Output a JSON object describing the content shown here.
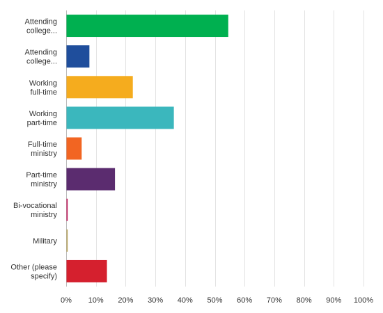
{
  "chart_data": {
    "type": "bar",
    "orientation": "horizontal",
    "categories": [
      [
        "Attending",
        "college..."
      ],
      [
        "Attending",
        "college..."
      ],
      [
        "Working",
        "full-time"
      ],
      [
        "Working",
        "part-time"
      ],
      [
        "Full-time",
        "ministry"
      ],
      [
        "Part-time",
        "ministry"
      ],
      [
        "Bi-vocational",
        "ministry"
      ],
      [
        "Military"
      ],
      [
        "Other (please",
        "specify)"
      ]
    ],
    "values": [
      54.4,
      7.7,
      22.3,
      36.1,
      5.1,
      16.3,
      0.4,
      0.4,
      13.6
    ],
    "colors": [
      "#00b050",
      "#1f4e9c",
      "#f5ac1e",
      "#3bb7bd",
      "#f26522",
      "#5b2c6f",
      "#c2185b",
      "#b8a35c",
      "#d5202e"
    ],
    "xlim": [
      0,
      100
    ],
    "xticks": [
      0,
      10,
      20,
      30,
      40,
      50,
      60,
      70,
      80,
      90,
      100
    ],
    "tick_suffix": "%",
    "grid": true,
    "legend": "none"
  }
}
